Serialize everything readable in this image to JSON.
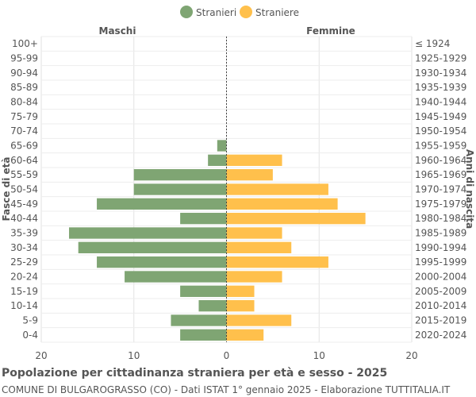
{
  "title": "Popolazione per cittadinanza straniera per età e sesso - 2025",
  "subtitle": "COMUNE DI BULGAROGRASSO (CO) - Dati ISTAT 1° gennaio 2025 - Elaborazione TUTTITALIA.IT",
  "chart_data": {
    "type": "bar",
    "orientation": "horizontal-pyramid",
    "legend": {
      "position": "top-center",
      "entries": [
        "Stranieri",
        "Straniere"
      ]
    },
    "left_header": "Maschi",
    "right_header": "Femmine",
    "ylabel_left": "Fasce di età",
    "ylabel_right": "Anni di nascita",
    "categories": [
      "100+",
      "95-99",
      "90-94",
      "85-89",
      "80-84",
      "75-79",
      "70-74",
      "65-69",
      "60-64",
      "55-59",
      "50-54",
      "45-49",
      "40-44",
      "35-39",
      "30-34",
      "25-29",
      "20-24",
      "15-19",
      "10-14",
      "5-9",
      "0-4"
    ],
    "birth_years": [
      "≤ 1924",
      "1925-1929",
      "1930-1934",
      "1935-1939",
      "1940-1944",
      "1945-1949",
      "1950-1954",
      "1955-1959",
      "1960-1964",
      "1965-1969",
      "1970-1974",
      "1975-1979",
      "1980-1984",
      "1985-1989",
      "1990-1994",
      "1995-1999",
      "2000-2004",
      "2005-2009",
      "2010-2014",
      "2015-2019",
      "2020-2024"
    ],
    "series": [
      {
        "name": "Stranieri",
        "color": "#7fa573",
        "values": [
          0,
          0,
          0,
          0,
          0,
          0,
          0,
          1,
          2,
          10,
          10,
          14,
          5,
          17,
          16,
          14,
          11,
          5,
          3,
          6,
          5
        ]
      },
      {
        "name": "Straniere",
        "color": "#ffc04c",
        "values": [
          0,
          0,
          0,
          0,
          0,
          0,
          0,
          0,
          6,
          5,
          11,
          12,
          15,
          6,
          7,
          11,
          6,
          3,
          3,
          7,
          4
        ]
      }
    ],
    "x_ticks": [
      "20",
      "10",
      "0",
      "10",
      "20"
    ],
    "xlim": [
      -20,
      20
    ],
    "grid": true
  }
}
